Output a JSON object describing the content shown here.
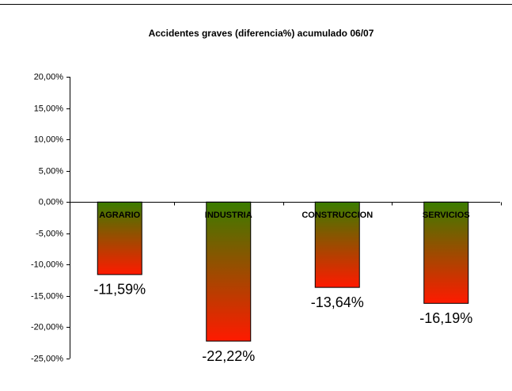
{
  "chart_data": {
    "type": "bar",
    "title": "Accidentes graves (diferencia%) acumulado 06/07",
    "categories": [
      "AGRARIO",
      "INDUSTRIA",
      "CONSTRUCCION",
      "SERVICIOS"
    ],
    "values": [
      -11.59,
      -22.22,
      -13.64,
      -16.19
    ],
    "value_labels": [
      "-11,59%",
      "-22,22%",
      "-13,64%",
      "-16,19%"
    ],
    "gradient": [
      "#3a7d00",
      "#ff1a00"
    ],
    "ylim": [
      -25,
      20
    ],
    "yticks": [
      {
        "value": 20,
        "label": "20,00%"
      },
      {
        "value": 15,
        "label": "15,00%"
      },
      {
        "value": 10,
        "label": "10,00%"
      },
      {
        "value": 5,
        "label": "5,00%"
      },
      {
        "value": 0,
        "label": "0,00%"
      },
      {
        "value": -5,
        "label": "-5,00%"
      },
      {
        "value": -10,
        "label": "-10,00%"
      },
      {
        "value": -15,
        "label": "-15,00%"
      },
      {
        "value": -20,
        "label": "-20,00%"
      },
      {
        "value": -25,
        "label": "-25,00%"
      }
    ],
    "grid": false
  }
}
